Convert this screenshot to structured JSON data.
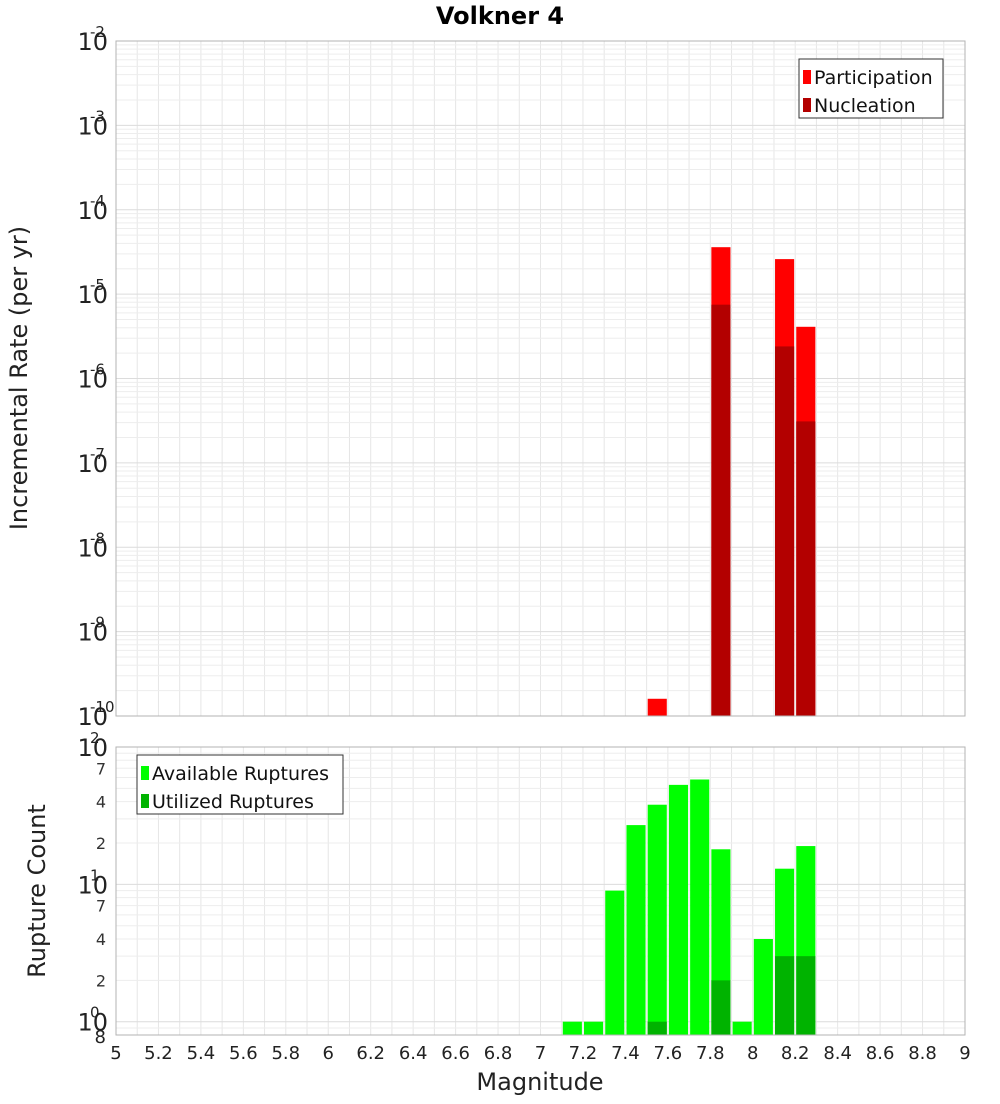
{
  "figure": {
    "title": "Volkner 4",
    "x_label": "Magnitude"
  },
  "chart_data": [
    {
      "type": "bar",
      "title": "Volkner 4",
      "xlabel": "Magnitude",
      "ylabel": "Incremental Rate (per yr)",
      "y_scale": "log",
      "xlim": [
        5,
        9
      ],
      "ylim": [
        1e-10,
        0.01
      ],
      "x_ticks": [
        5,
        5.2,
        5.4,
        5.6,
        5.8,
        6,
        6.2,
        6.4,
        6.6,
        6.8,
        7,
        7.2,
        7.4,
        7.6,
        7.8,
        8,
        8.2,
        8.4,
        8.6,
        8.8,
        9
      ],
      "y_ticks": [
        {
          "base": "10",
          "exp": "-10",
          "value": 1e-10
        },
        {
          "base": "10",
          "exp": "-9",
          "value": 1e-09
        },
        {
          "base": "10",
          "exp": "-8",
          "value": 1e-08
        },
        {
          "base": "10",
          "exp": "-7",
          "value": 1e-07
        },
        {
          "base": "10",
          "exp": "-6",
          "value": 1e-06
        },
        {
          "base": "10",
          "exp": "-5",
          "value": 1e-05
        },
        {
          "base": "10",
          "exp": "-4",
          "value": 0.0001
        },
        {
          "base": "10",
          "exp": "-3",
          "value": 0.001
        },
        {
          "base": "10",
          "exp": "-2",
          "value": 0.01
        }
      ],
      "grid": true,
      "legend_position": "top-right",
      "series": [
        {
          "name": "Participation",
          "color": "#ff0000",
          "x": [
            7.55,
            7.85,
            8.15,
            8.25
          ],
          "values": [
            1.6e-10,
            3.6e-05,
            2.6e-05,
            4.1e-06
          ]
        },
        {
          "name": "Nucleation",
          "color": "#b30000",
          "x": [
            7.85,
            8.15,
            8.25
          ],
          "values": [
            7.5e-06,
            2.4e-06,
            3.1e-07
          ]
        }
      ]
    },
    {
      "type": "bar",
      "xlabel": "Magnitude",
      "ylabel": "Rupture Count",
      "y_scale": "log",
      "xlim": [
        5,
        9
      ],
      "ylim": [
        0.8,
        100
      ],
      "x_ticks": [
        5,
        5.2,
        5.4,
        5.6,
        5.8,
        6,
        6.2,
        6.4,
        6.6,
        6.8,
        7,
        7.2,
        7.4,
        7.6,
        7.8,
        8,
        8.2,
        8.4,
        8.6,
        8.8,
        9
      ],
      "y_major_ticks": [
        {
          "base": "10",
          "exp": "0",
          "value": 1
        },
        {
          "base": "10",
          "exp": "1",
          "value": 10
        },
        {
          "base": "10",
          "exp": "2",
          "value": 100
        }
      ],
      "y_minor_ticks": [
        {
          "label": "8",
          "value": 0.8
        },
        {
          "label": "2",
          "value": 2
        },
        {
          "label": "4",
          "value": 4
        },
        {
          "label": "7",
          "value": 7
        },
        {
          "label": "2",
          "value": 20
        },
        {
          "label": "4",
          "value": 40
        },
        {
          "label": "7",
          "value": 70
        }
      ],
      "grid": true,
      "legend_position": "top-left",
      "series": [
        {
          "name": "Available Ruptures",
          "color": "#00ff00",
          "x": [
            7.15,
            7.25,
            7.35,
            7.45,
            7.55,
            7.65,
            7.75,
            7.85,
            7.95,
            8.05,
            8.15,
            8.25
          ],
          "values": [
            1,
            1,
            9,
            27,
            38,
            53,
            58,
            18,
            1,
            4,
            13,
            19
          ]
        },
        {
          "name": "Utilized Ruptures",
          "color": "#00b300",
          "x": [
            7.55,
            7.85,
            8.15,
            8.25
          ],
          "values": [
            1,
            2,
            3,
            3
          ]
        }
      ]
    }
  ]
}
